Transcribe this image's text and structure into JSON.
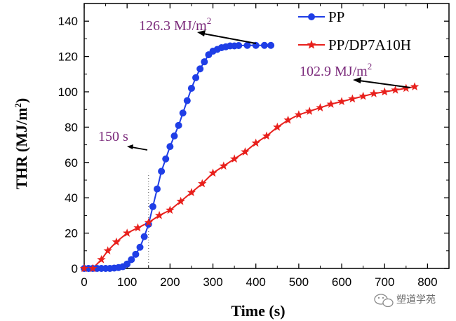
{
  "chart_data": {
    "type": "line",
    "xlabel": "Time (s)",
    "ylabel": "THR (MJ/m",
    "ylabel_sup": "2",
    "ylabel_end": ")",
    "xlim": [
      0,
      850
    ],
    "ylim": [
      0,
      150
    ],
    "xticks": [
      0,
      100,
      200,
      300,
      400,
      500,
      600,
      700,
      800
    ],
    "yticks": [
      0,
      20,
      40,
      60,
      80,
      100,
      120,
      140
    ],
    "series": [
      {
        "name": "PP",
        "color": "#1f3ee6",
        "marker": "circle",
        "points": [
          [
            0,
            0
          ],
          [
            10,
            0
          ],
          [
            20,
            0
          ],
          [
            30,
            0
          ],
          [
            40,
            0
          ],
          [
            50,
            0
          ],
          [
            60,
            0
          ],
          [
            70,
            0.2
          ],
          [
            80,
            0.5
          ],
          [
            90,
            1
          ],
          [
            100,
            2.5
          ],
          [
            110,
            5
          ],
          [
            120,
            8
          ],
          [
            130,
            12
          ],
          [
            140,
            18
          ],
          [
            150,
            25
          ],
          [
            160,
            35
          ],
          [
            170,
            45
          ],
          [
            180,
            55
          ],
          [
            190,
            62
          ],
          [
            200,
            69
          ],
          [
            210,
            75
          ],
          [
            220,
            81
          ],
          [
            230,
            88
          ],
          [
            240,
            95
          ],
          [
            250,
            102
          ],
          [
            260,
            108
          ],
          [
            270,
            113
          ],
          [
            280,
            117
          ],
          [
            290,
            121
          ],
          [
            300,
            123
          ],
          [
            310,
            124
          ],
          [
            320,
            125
          ],
          [
            330,
            125.5
          ],
          [
            340,
            126
          ],
          [
            350,
            126
          ],
          [
            360,
            126.2
          ],
          [
            380,
            126.3
          ],
          [
            400,
            126.3
          ],
          [
            420,
            126.3
          ],
          [
            435,
            126.3
          ]
        ]
      },
      {
        "name": "PP/DP7A10H",
        "color": "#e8201c",
        "marker": "star",
        "points": [
          [
            0,
            0
          ],
          [
            20,
            0
          ],
          [
            40,
            5
          ],
          [
            55,
            10
          ],
          [
            75,
            15
          ],
          [
            100,
            20
          ],
          [
            125,
            23
          ],
          [
            150,
            26
          ],
          [
            175,
            30
          ],
          [
            200,
            33
          ],
          [
            225,
            38
          ],
          [
            250,
            43
          ],
          [
            275,
            48
          ],
          [
            300,
            54
          ],
          [
            325,
            58
          ],
          [
            350,
            62
          ],
          [
            375,
            66
          ],
          [
            400,
            71
          ],
          [
            425,
            75
          ],
          [
            450,
            80
          ],
          [
            475,
            84
          ],
          [
            500,
            87
          ],
          [
            525,
            89
          ],
          [
            550,
            91
          ],
          [
            575,
            93
          ],
          [
            600,
            94.5
          ],
          [
            625,
            96
          ],
          [
            650,
            97.5
          ],
          [
            675,
            99
          ],
          [
            700,
            100
          ],
          [
            725,
            101
          ],
          [
            750,
            102
          ],
          [
            770,
            102.9
          ]
        ]
      }
    ],
    "annotations": [
      {
        "label": "126.3 MJ/m",
        "sup": "2"
      },
      {
        "label": "102.9 MJ/m",
        "sup": "2"
      },
      {
        "label": "150 s"
      }
    ],
    "legend_position": "top-right"
  },
  "watermark": {
    "text": "塑道学苑"
  }
}
